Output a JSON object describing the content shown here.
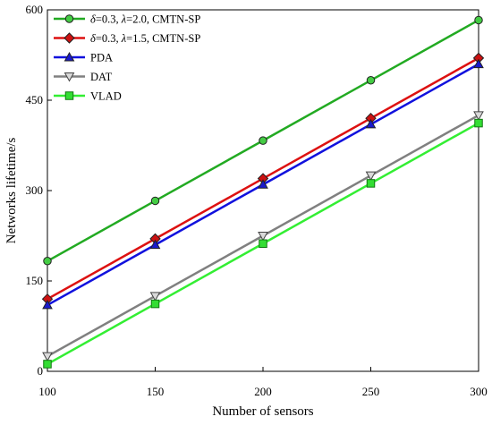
{
  "chart_data": {
    "type": "line",
    "xlabel": "Number of sensors",
    "ylabel": "Networks lifetime/s",
    "xlim": [
      100,
      300
    ],
    "ylim": [
      0,
      600
    ],
    "x_ticks": [
      100,
      150,
      200,
      250,
      300
    ],
    "y_ticks": [
      0,
      150,
      300,
      450,
      600
    ],
    "grid": false,
    "legend_position": "top-left",
    "x": [
      100,
      150,
      200,
      250,
      300
    ],
    "series": [
      {
        "name_parts": {
          "sym1": "δ",
          "mid": "=0.3, ",
          "sym2": "λ",
          "tail": "=2.0, CMTN-SP"
        },
        "values": [
          183,
          283,
          383,
          483,
          583
        ],
        "color": "#22aa22",
        "marker": "circle",
        "marker_fill": "#44cc44"
      },
      {
        "name_parts": {
          "sym1": "δ",
          "mid": "=0.3, ",
          "sym2": "λ",
          "tail": "=1.5, CMTN-SP"
        },
        "values": [
          120,
          220,
          320,
          420,
          520
        ],
        "color": "#dd1111",
        "marker": "diamond",
        "marker_fill": "#cc1111"
      },
      {
        "name": "PDA",
        "values": [
          110,
          210,
          310,
          410,
          510
        ],
        "color": "#1111dd",
        "marker": "triangle-up",
        "marker_fill": "#1a1acc"
      },
      {
        "name": "DAT",
        "values": [
          25,
          125,
          225,
          325,
          425
        ],
        "color": "#808080",
        "marker": "triangle-down",
        "marker_fill": "#d9d9d9"
      },
      {
        "name": "VLAD",
        "values": [
          12,
          112,
          212,
          312,
          412
        ],
        "color": "#33ee33",
        "marker": "square",
        "marker_fill": "#33dd33"
      }
    ]
  }
}
